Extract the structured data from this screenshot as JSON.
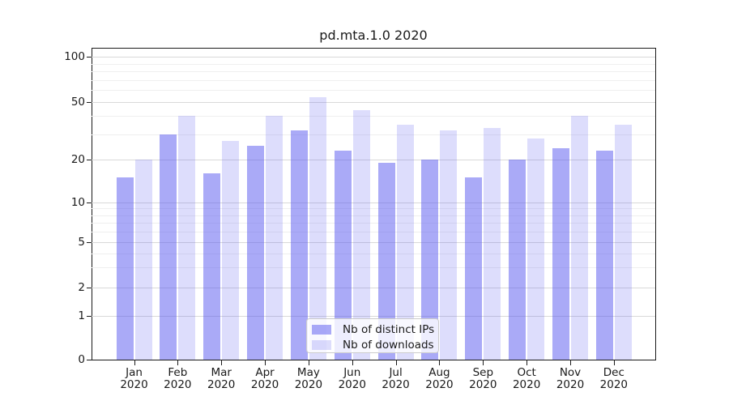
{
  "chart_data": {
    "type": "bar",
    "title": "pd.mta.1.0 2020",
    "categories": [
      "Jan",
      "Feb",
      "Mar",
      "Apr",
      "May",
      "Jun",
      "Jul",
      "Aug",
      "Sep",
      "Oct",
      "Nov",
      "Dec"
    ],
    "category_sub_label": "2020",
    "series": [
      {
        "name": "Nb of distinct IPs",
        "color": "#5555F0",
        "alpha": 0.5,
        "values": [
          15,
          30,
          16,
          25,
          32,
          23,
          19,
          20,
          15,
          20,
          24,
          23
        ]
      },
      {
        "name": "Nb of downloads",
        "color": "#5555F0",
        "alpha": 0.2,
        "values": [
          20,
          40,
          27,
          40,
          54,
          44,
          35,
          32,
          33,
          28,
          40,
          35
        ]
      }
    ],
    "xlabel": "",
    "ylabel": "",
    "y_axis": {
      "scale": "symlog-like",
      "tick_labels": [
        "0",
        "1",
        "2",
        "5",
        "10",
        "20",
        "50",
        "100"
      ],
      "tick_values": [
        0,
        1,
        2,
        5,
        10,
        20,
        50,
        100
      ],
      "minor_tick_values": [
        3,
        4,
        6,
        7,
        8,
        9,
        30,
        40,
        60,
        70,
        80,
        90
      ],
      "ylim": [
        0,
        115
      ]
    },
    "legend": {
      "location": "lower center"
    },
    "grid": true,
    "colors": {
      "axis": "#1a1a1a",
      "grid_major": "#d9d9d9",
      "grid_minor": "#efefef",
      "background": "#ffffff",
      "legend_border": "#cccccc"
    }
  }
}
